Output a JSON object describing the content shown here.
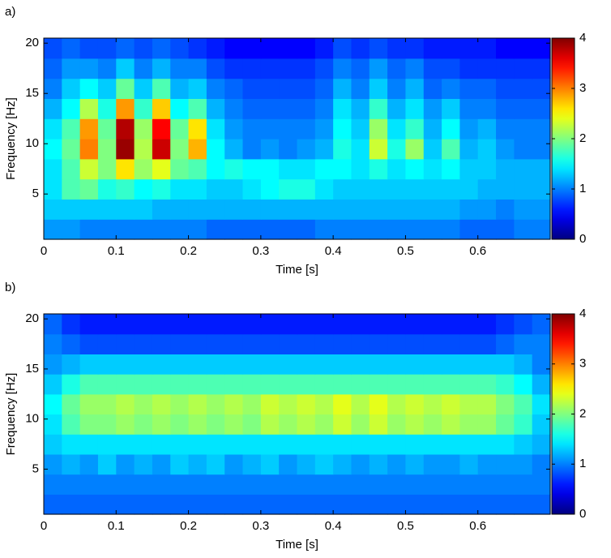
{
  "chart_data": [
    {
      "type": "heatmap",
      "label": "a)",
      "xlabel": "Time [s]",
      "ylabel": "Frequency [Hz]",
      "colormap": "jet",
      "x": [
        0.0125,
        0.0375,
        0.0625,
        0.0875,
        0.1125,
        0.1375,
        0.1625,
        0.1875,
        0.2125,
        0.2375,
        0.2625,
        0.2875,
        0.3125,
        0.3375,
        0.3625,
        0.3875,
        0.4125,
        0.4375,
        0.4625,
        0.4875,
        0.5125,
        0.5375,
        0.5625,
        0.5875,
        0.6125,
        0.6375,
        0.6625,
        0.6875
      ],
      "y": [
        1.5,
        3.5,
        5.5,
        7.5,
        9.5,
        11.5,
        13.5,
        15.5,
        17.5,
        19.5
      ],
      "z": [
        [
          1.1,
          1.1,
          1.0,
          1.0,
          1.0,
          1.0,
          1.0,
          1.0,
          1.0,
          0.9,
          0.9,
          0.9,
          0.9,
          0.9,
          0.9,
          1.0,
          1.0,
          1.0,
          1.0,
          1.0,
          1.0,
          1.0,
          1.0,
          0.9,
          0.9,
          0.9,
          1.0,
          1.0
        ],
        [
          1.3,
          1.3,
          1.3,
          1.3,
          1.3,
          1.3,
          1.2,
          1.2,
          1.2,
          1.2,
          1.2,
          1.2,
          1.2,
          1.2,
          1.2,
          1.2,
          1.2,
          1.2,
          1.2,
          1.2,
          1.2,
          1.2,
          1.2,
          1.1,
          1.1,
          1.0,
          1.1,
          1.1
        ],
        [
          1.4,
          1.8,
          1.9,
          1.6,
          1.7,
          1.5,
          1.6,
          1.4,
          1.4,
          1.3,
          1.3,
          1.4,
          1.5,
          1.6,
          1.6,
          1.4,
          1.3,
          1.3,
          1.3,
          1.3,
          1.3,
          1.3,
          1.3,
          1.3,
          1.2,
          1.2,
          1.2,
          1.2
        ],
        [
          1.4,
          1.8,
          2.3,
          2.0,
          2.6,
          2.1,
          2.4,
          1.9,
          1.8,
          1.5,
          1.6,
          1.5,
          1.5,
          1.4,
          1.4,
          1.5,
          1.5,
          1.4,
          1.6,
          1.4,
          1.5,
          1.4,
          1.5,
          1.3,
          1.3,
          1.2,
          1.2,
          1.2
        ],
        [
          1.5,
          1.9,
          3.0,
          2.0,
          3.9,
          2.2,
          3.7,
          2.0,
          2.8,
          1.5,
          1.2,
          1.0,
          1.1,
          1.0,
          1.1,
          1.2,
          1.6,
          1.4,
          2.3,
          1.6,
          2.1,
          1.3,
          1.8,
          1.2,
          1.3,
          1.1,
          1.0,
          1.0
        ],
        [
          1.4,
          1.8,
          2.9,
          1.9,
          3.8,
          2.1,
          3.5,
          1.9,
          2.6,
          1.4,
          1.1,
          1.0,
          1.0,
          1.0,
          1.0,
          1.1,
          1.5,
          1.3,
          2.1,
          1.4,
          1.7,
          1.2,
          1.5,
          1.1,
          1.2,
          1.0,
          1.0,
          1.0
        ],
        [
          1.2,
          1.5,
          2.2,
          1.6,
          2.9,
          1.7,
          2.7,
          1.5,
          1.8,
          1.2,
          1.0,
          0.9,
          0.9,
          0.9,
          0.9,
          1.0,
          1.4,
          1.2,
          1.7,
          1.2,
          1.4,
          1.1,
          1.3,
          1.0,
          1.0,
          0.9,
          0.9,
          0.9
        ],
        [
          1.0,
          1.3,
          1.5,
          1.3,
          1.9,
          1.3,
          1.8,
          1.2,
          1.3,
          1.0,
          0.9,
          0.8,
          0.8,
          0.8,
          0.8,
          0.9,
          1.2,
          1.0,
          1.3,
          1.0,
          1.2,
          0.9,
          1.0,
          0.9,
          0.9,
          0.8,
          0.8,
          0.8
        ],
        [
          0.9,
          1.1,
          1.1,
          1.0,
          1.3,
          1.0,
          1.2,
          1.0,
          1.0,
          0.8,
          0.7,
          0.7,
          0.7,
          0.7,
          0.7,
          0.8,
          1.0,
          0.9,
          1.1,
          0.9,
          1.0,
          0.8,
          0.8,
          0.7,
          0.7,
          0.7,
          0.7,
          0.7
        ],
        [
          0.8,
          0.9,
          0.8,
          0.8,
          0.9,
          0.8,
          0.9,
          0.8,
          0.7,
          0.6,
          0.5,
          0.5,
          0.5,
          0.5,
          0.5,
          0.6,
          0.8,
          0.7,
          0.8,
          0.7,
          0.7,
          0.6,
          0.6,
          0.6,
          0.6,
          0.5,
          0.5,
          0.5
        ]
      ],
      "xlim": [
        0,
        0.7
      ],
      "ylim": [
        0.5,
        20.5
      ],
      "xticks": [
        0,
        0.1,
        0.2,
        0.3,
        0.4,
        0.5,
        0.6
      ],
      "yticks": [
        5,
        10,
        15,
        20
      ],
      "clim": [
        0,
        4
      ],
      "cticks": [
        0,
        1,
        2,
        3,
        4
      ]
    },
    {
      "type": "heatmap",
      "label": "b)",
      "xlabel": "Time [s]",
      "ylabel": "Frequency [Hz]",
      "colormap": "jet",
      "x": [
        0.0125,
        0.0375,
        0.0625,
        0.0875,
        0.1125,
        0.1375,
        0.1625,
        0.1875,
        0.2125,
        0.2375,
        0.2625,
        0.2875,
        0.3125,
        0.3375,
        0.3625,
        0.3875,
        0.4125,
        0.4375,
        0.4625,
        0.4875,
        0.5125,
        0.5375,
        0.5625,
        0.5875,
        0.6125,
        0.6375,
        0.6625,
        0.6875
      ],
      "y": [
        1.5,
        3.5,
        5.5,
        7.5,
        9.5,
        11.5,
        13.5,
        15.5,
        17.5,
        19.5
      ],
      "z": [
        [
          0.9,
          0.9,
          0.9,
          0.9,
          0.9,
          0.9,
          0.9,
          0.9,
          0.9,
          0.9,
          0.9,
          0.9,
          0.9,
          0.9,
          0.9,
          0.9,
          0.9,
          0.9,
          0.9,
          0.9,
          0.9,
          0.9,
          0.9,
          0.9,
          0.9,
          0.9,
          0.9,
          0.9
        ],
        [
          1.0,
          1.0,
          1.0,
          1.0,
          1.0,
          1.0,
          1.0,
          1.0,
          1.0,
          1.0,
          1.0,
          1.0,
          1.0,
          1.0,
          1.0,
          1.0,
          1.0,
          1.0,
          1.0,
          1.0,
          1.0,
          1.0,
          1.0,
          1.0,
          1.0,
          1.0,
          1.0,
          1.0
        ],
        [
          1.1,
          1.2,
          1.1,
          1.3,
          1.1,
          1.2,
          1.1,
          1.3,
          1.2,
          1.3,
          1.1,
          1.2,
          1.3,
          1.1,
          1.2,
          1.3,
          1.2,
          1.1,
          1.2,
          1.1,
          1.2,
          1.1,
          1.1,
          1.2,
          1.1,
          1.1,
          1.1,
          1.0
        ],
        [
          1.3,
          1.4,
          1.4,
          1.4,
          1.4,
          1.4,
          1.4,
          1.4,
          1.4,
          1.4,
          1.4,
          1.4,
          1.4,
          1.4,
          1.4,
          1.4,
          1.4,
          1.4,
          1.4,
          1.4,
          1.4,
          1.4,
          1.4,
          1.4,
          1.4,
          1.4,
          1.3,
          1.2
        ],
        [
          1.4,
          1.8,
          2.0,
          2.0,
          2.1,
          2.0,
          2.1,
          2.0,
          2.1,
          2.0,
          2.1,
          2.0,
          2.2,
          2.1,
          2.2,
          2.1,
          2.3,
          2.1,
          2.3,
          2.1,
          2.2,
          2.1,
          2.2,
          2.1,
          2.1,
          1.9,
          1.7,
          1.3
        ],
        [
          1.5,
          1.9,
          2.1,
          2.1,
          2.2,
          2.1,
          2.2,
          2.1,
          2.2,
          2.1,
          2.2,
          2.1,
          2.3,
          2.2,
          2.3,
          2.2,
          2.4,
          2.2,
          2.4,
          2.2,
          2.3,
          2.2,
          2.3,
          2.2,
          2.2,
          2.0,
          1.8,
          1.4
        ],
        [
          1.3,
          1.6,
          1.8,
          1.8,
          1.8,
          1.8,
          1.8,
          1.8,
          1.8,
          1.8,
          1.8,
          1.8,
          1.8,
          1.8,
          1.8,
          1.8,
          1.8,
          1.8,
          1.8,
          1.8,
          1.8,
          1.8,
          1.8,
          1.8,
          1.8,
          1.7,
          1.5,
          1.2
        ],
        [
          1.1,
          1.2,
          1.3,
          1.3,
          1.3,
          1.3,
          1.3,
          1.3,
          1.3,
          1.3,
          1.3,
          1.3,
          1.3,
          1.3,
          1.3,
          1.3,
          1.3,
          1.3,
          1.3,
          1.3,
          1.3,
          1.3,
          1.3,
          1.3,
          1.3,
          1.3,
          1.2,
          1.0
        ],
        [
          1.0,
          0.9,
          0.8,
          0.8,
          0.8,
          0.8,
          0.8,
          0.8,
          0.8,
          0.8,
          0.8,
          0.8,
          0.8,
          0.8,
          0.8,
          0.8,
          0.8,
          0.8,
          0.8,
          0.8,
          0.8,
          0.8,
          0.8,
          0.8,
          0.8,
          0.9,
          1.0,
          1.0
        ],
        [
          0.9,
          0.7,
          0.6,
          0.6,
          0.6,
          0.6,
          0.6,
          0.6,
          0.6,
          0.6,
          0.6,
          0.6,
          0.6,
          0.6,
          0.6,
          0.6,
          0.6,
          0.6,
          0.6,
          0.6,
          0.6,
          0.6,
          0.6,
          0.6,
          0.6,
          0.7,
          0.8,
          0.9
        ]
      ],
      "xlim": [
        0,
        0.7
      ],
      "ylim": [
        0.5,
        20.5
      ],
      "xticks": [
        0,
        0.1,
        0.2,
        0.3,
        0.4,
        0.5,
        0.6
      ],
      "yticks": [
        5,
        10,
        15,
        20
      ],
      "clim": [
        0,
        4
      ],
      "cticks": [
        0,
        1,
        2,
        3,
        4
      ]
    }
  ]
}
